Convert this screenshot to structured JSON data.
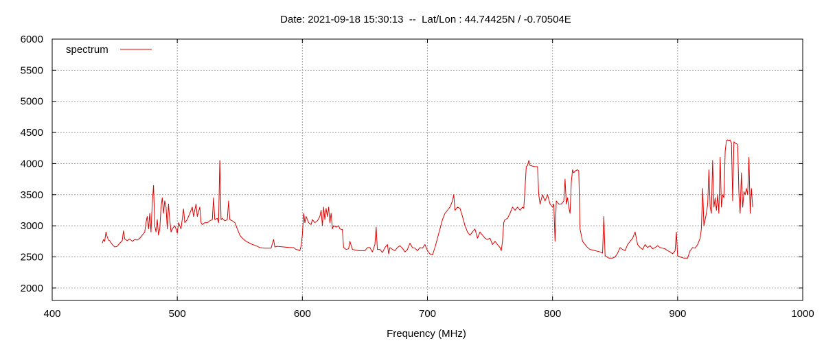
{
  "chart_data": {
    "type": "line",
    "title": "Date: 2021-09-18 15:30:13  --  Lat/Lon : 44.74425N / -0.70504E",
    "xlabel": "Frequency (MHz)",
    "ylabel": "",
    "xlim": [
      400,
      1000
    ],
    "ylim": [
      1800,
      6000
    ],
    "xticks": [
      400,
      500,
      600,
      700,
      800,
      900,
      1000
    ],
    "yticks": [
      2000,
      2500,
      3000,
      3500,
      4000,
      4500,
      5000,
      5500,
      6000
    ],
    "grid": true,
    "legend_position": "top-left",
    "colors": {
      "series": "#dd0000",
      "grid": "#a0a0a0",
      "axes": "#000000"
    },
    "series": [
      {
        "name": "spectrum",
        "points": [
          [
            440,
            2720
          ],
          [
            441,
            2780
          ],
          [
            442,
            2750
          ],
          [
            443,
            2900
          ],
          [
            444,
            2820
          ],
          [
            445,
            2770
          ],
          [
            446,
            2760
          ],
          [
            448,
            2700
          ],
          [
            450,
            2660
          ],
          [
            452,
            2670
          ],
          [
            454,
            2720
          ],
          [
            456,
            2760
          ],
          [
            457,
            2920
          ],
          [
            458,
            2790
          ],
          [
            460,
            2760
          ],
          [
            462,
            2790
          ],
          [
            464,
            2750
          ],
          [
            466,
            2780
          ],
          [
            468,
            2770
          ],
          [
            470,
            2800
          ],
          [
            472,
            2850
          ],
          [
            474,
            2900
          ],
          [
            475,
            3050
          ],
          [
            476,
            3150
          ],
          [
            477,
            2950
          ],
          [
            478,
            3200
          ],
          [
            479,
            2900
          ],
          [
            480,
            3350
          ],
          [
            481,
            3650
          ],
          [
            482,
            3000
          ],
          [
            483,
            2900
          ],
          [
            484,
            3100
          ],
          [
            485,
            2850
          ],
          [
            486,
            2950
          ],
          [
            487,
            3300
          ],
          [
            488,
            3450
          ],
          [
            489,
            3200
          ],
          [
            490,
            3400
          ],
          [
            491,
            3300
          ],
          [
            492,
            2950
          ],
          [
            493,
            3350
          ],
          [
            494,
            3100
          ],
          [
            495,
            2900
          ],
          [
            496,
            2950
          ],
          [
            498,
            3000
          ],
          [
            499,
            2950
          ],
          [
            500,
            2880
          ],
          [
            501,
            3050
          ],
          [
            503,
            2950
          ],
          [
            505,
            3270
          ],
          [
            506,
            3050
          ],
          [
            508,
            3100
          ],
          [
            510,
            3200
          ],
          [
            512,
            3300
          ],
          [
            513,
            3150
          ],
          [
            515,
            3350
          ],
          [
            516,
            3150
          ],
          [
            518,
            3300
          ],
          [
            519,
            3050
          ],
          [
            520,
            3020
          ],
          [
            522,
            3050
          ],
          [
            524,
            3050
          ],
          [
            526,
            3080
          ],
          [
            528,
            3100
          ],
          [
            529,
            3450
          ],
          [
            530,
            3100
          ],
          [
            532,
            3120
          ],
          [
            533,
            3050
          ],
          [
            534,
            4050
          ],
          [
            535,
            3100
          ],
          [
            536,
            3120
          ],
          [
            538,
            3080
          ],
          [
            540,
            3100
          ],
          [
            541,
            3400
          ],
          [
            542,
            3100
          ],
          [
            544,
            3080
          ],
          [
            546,
            3050
          ],
          [
            548,
            2950
          ],
          [
            550,
            2850
          ],
          [
            552,
            2800
          ],
          [
            555,
            2750
          ],
          [
            558,
            2720
          ],
          [
            560,
            2700
          ],
          [
            563,
            2680
          ],
          [
            566,
            2650
          ],
          [
            570,
            2640
          ],
          [
            575,
            2640
          ],
          [
            577,
            2780
          ],
          [
            578,
            2660
          ],
          [
            580,
            2670
          ],
          [
            585,
            2660
          ],
          [
            590,
            2650
          ],
          [
            593,
            2650
          ],
          [
            595,
            2620
          ],
          [
            597,
            2610
          ],
          [
            598,
            2600
          ],
          [
            599,
            2680
          ],
          [
            600,
            2850
          ],
          [
            601,
            3200
          ],
          [
            602,
            3050
          ],
          [
            603,
            3150
          ],
          [
            605,
            3050
          ],
          [
            607,
            3020
          ],
          [
            608,
            3100
          ],
          [
            610,
            3050
          ],
          [
            612,
            3080
          ],
          [
            614,
            3150
          ],
          [
            615,
            3250
          ],
          [
            616,
            3000
          ],
          [
            617,
            3300
          ],
          [
            618,
            3100
          ],
          [
            619,
            3280
          ],
          [
            620,
            3150
          ],
          [
            621,
            3300
          ],
          [
            622,
            3050
          ],
          [
            623,
            3200
          ],
          [
            624,
            2950
          ],
          [
            625,
            3000
          ],
          [
            627,
            2980
          ],
          [
            629,
            3000
          ],
          [
            630,
            2950
          ],
          [
            632,
            2940
          ],
          [
            633,
            2650
          ],
          [
            635,
            2620
          ],
          [
            637,
            2630
          ],
          [
            638,
            2750
          ],
          [
            640,
            2620
          ],
          [
            645,
            2600
          ],
          [
            650,
            2600
          ],
          [
            652,
            2650
          ],
          [
            654,
            2650
          ],
          [
            656,
            2580
          ],
          [
            658,
            2700
          ],
          [
            659,
            2980
          ],
          [
            660,
            2620
          ],
          [
            662,
            2620
          ],
          [
            664,
            2570
          ],
          [
            666,
            2650
          ],
          [
            668,
            2700
          ],
          [
            669,
            2550
          ],
          [
            670,
            2650
          ],
          [
            672,
            2620
          ],
          [
            674,
            2600
          ],
          [
            676,
            2650
          ],
          [
            678,
            2680
          ],
          [
            680,
            2640
          ],
          [
            682,
            2580
          ],
          [
            684,
            2620
          ],
          [
            686,
            2720
          ],
          [
            688,
            2650
          ],
          [
            690,
            2640
          ],
          [
            692,
            2600
          ],
          [
            694,
            2650
          ],
          [
            696,
            2640
          ],
          [
            698,
            2700
          ],
          [
            700,
            2600
          ],
          [
            702,
            2550
          ],
          [
            704,
            2530
          ],
          [
            706,
            2650
          ],
          [
            708,
            2800
          ],
          [
            710,
            2950
          ],
          [
            712,
            3100
          ],
          [
            714,
            3200
          ],
          [
            716,
            3250
          ],
          [
            718,
            3300
          ],
          [
            720,
            3400
          ],
          [
            721,
            3500
          ],
          [
            722,
            3250
          ],
          [
            724,
            3300
          ],
          [
            726,
            3280
          ],
          [
            728,
            3150
          ],
          [
            730,
            3000
          ],
          [
            732,
            2900
          ],
          [
            734,
            2850
          ],
          [
            736,
            2900
          ],
          [
            738,
            2950
          ],
          [
            740,
            2800
          ],
          [
            742,
            2900
          ],
          [
            744,
            2850
          ],
          [
            746,
            2800
          ],
          [
            748,
            2780
          ],
          [
            750,
            2800
          ],
          [
            752,
            2700
          ],
          [
            754,
            2750
          ],
          [
            756,
            2700
          ],
          [
            758,
            2650
          ],
          [
            759,
            2600
          ],
          [
            760,
            2750
          ],
          [
            761,
            3050
          ],
          [
            762,
            3100
          ],
          [
            764,
            3120
          ],
          [
            766,
            3200
          ],
          [
            768,
            3300
          ],
          [
            770,
            3250
          ],
          [
            772,
            3300
          ],
          [
            774,
            3250
          ],
          [
            776,
            3300
          ],
          [
            777,
            3280
          ],
          [
            778,
            3600
          ],
          [
            779,
            3950
          ],
          [
            780,
            3970
          ],
          [
            781,
            4050
          ],
          [
            782,
            3970
          ],
          [
            784,
            3960
          ],
          [
            786,
            3950
          ],
          [
            788,
            3950
          ],
          [
            789,
            3500
          ],
          [
            790,
            3350
          ],
          [
            792,
            3500
          ],
          [
            794,
            3400
          ],
          [
            796,
            3500
          ],
          [
            798,
            3350
          ],
          [
            800,
            3300
          ],
          [
            801,
            3350
          ],
          [
            802,
            2750
          ],
          [
            803,
            3400
          ],
          [
            805,
            3350
          ],
          [
            807,
            3350
          ],
          [
            809,
            3400
          ],
          [
            810,
            3750
          ],
          [
            811,
            3350
          ],
          [
            812,
            3450
          ],
          [
            813,
            3300
          ],
          [
            814,
            3200
          ],
          [
            815,
            3700
          ],
          [
            816,
            3900
          ],
          [
            817,
            3850
          ],
          [
            818,
            3880
          ],
          [
            820,
            3900
          ],
          [
            821,
            3880
          ],
          [
            822,
            2950
          ],
          [
            824,
            2750
          ],
          [
            826,
            2700
          ],
          [
            828,
            2650
          ],
          [
            830,
            2620
          ],
          [
            834,
            2600
          ],
          [
            838,
            2580
          ],
          [
            840,
            2560
          ],
          [
            841,
            3150
          ],
          [
            842,
            2520
          ],
          [
            845,
            2480
          ],
          [
            848,
            2480
          ],
          [
            850,
            2500
          ],
          [
            852,
            2560
          ],
          [
            854,
            2650
          ],
          [
            856,
            2620
          ],
          [
            858,
            2600
          ],
          [
            860,
            2700
          ],
          [
            862,
            2750
          ],
          [
            864,
            2800
          ],
          [
            866,
            2900
          ],
          [
            868,
            2700
          ],
          [
            870,
            2650
          ],
          [
            872,
            2620
          ],
          [
            874,
            2700
          ],
          [
            876,
            2650
          ],
          [
            878,
            2680
          ],
          [
            880,
            2630
          ],
          [
            882,
            2650
          ],
          [
            884,
            2680
          ],
          [
            886,
            2650
          ],
          [
            888,
            2640
          ],
          [
            890,
            2630
          ],
          [
            892,
            2600
          ],
          [
            894,
            2580
          ],
          [
            896,
            2550
          ],
          [
            898,
            2600
          ],
          [
            899,
            2900
          ],
          [
            900,
            2520
          ],
          [
            902,
            2500
          ],
          [
            905,
            2480
          ],
          [
            908,
            2480
          ],
          [
            910,
            2600
          ],
          [
            912,
            2650
          ],
          [
            914,
            2640
          ],
          [
            916,
            2700
          ],
          [
            918,
            2800
          ],
          [
            919,
            2950
          ],
          [
            920,
            3600
          ],
          [
            921,
            3000
          ],
          [
            922,
            3100
          ],
          [
            923,
            3200
          ],
          [
            924,
            3350
          ],
          [
            925,
            3900
          ],
          [
            926,
            3300
          ],
          [
            927,
            3200
          ],
          [
            928,
            4050
          ],
          [
            929,
            3300
          ],
          [
            930,
            3450
          ],
          [
            931,
            3250
          ],
          [
            932,
            3500
          ],
          [
            933,
            3200
          ],
          [
            934,
            4100
          ],
          [
            935,
            3300
          ],
          [
            936,
            3500
          ],
          [
            937,
            3450
          ],
          [
            938,
            4200
          ],
          [
            939,
            4370
          ],
          [
            940,
            4380
          ],
          [
            941,
            4370
          ],
          [
            942,
            4380
          ],
          [
            943,
            4330
          ],
          [
            944,
            3400
          ],
          [
            945,
            4350
          ],
          [
            946,
            4330
          ],
          [
            947,
            4320
          ],
          [
            948,
            4300
          ],
          [
            949,
            3500
          ],
          [
            950,
            3200
          ],
          [
            951,
            3850
          ],
          [
            952,
            3300
          ],
          [
            953,
            3550
          ],
          [
            954,
            3500
          ],
          [
            955,
            3600
          ],
          [
            956,
            3500
          ],
          [
            957,
            4100
          ],
          [
            958,
            3200
          ],
          [
            959,
            3600
          ],
          [
            960,
            3300
          ]
        ]
      }
    ]
  }
}
